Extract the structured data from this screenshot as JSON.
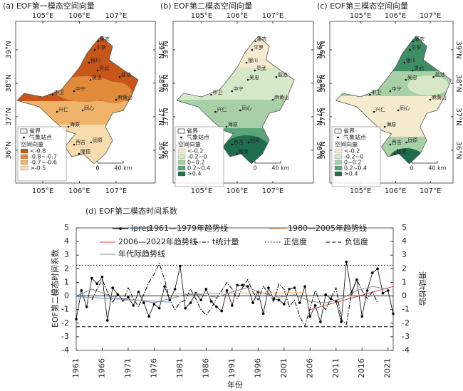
{
  "chart_data": [
    {
      "type": "map",
      "title": "(a) EOF第一模态空间向量",
      "xlim": [
        104.26,
        108.07
      ],
      "ylim": [
        35.02,
        39.85
      ],
      "xticks": [
        {
          "value": 105,
          "label": "105°E"
        },
        {
          "value": 106,
          "label": "106°E"
        },
        {
          "value": 107,
          "label": "107°E"
        }
      ],
      "yticks": [
        {
          "value": 36,
          "label": "36°N"
        },
        {
          "value": 37,
          "label": "37°N"
        },
        {
          "value": 38,
          "label": "38°N"
        },
        {
          "value": 39,
          "label": "39°N"
        }
      ],
      "legend_items": [
        "省界",
        "气象站点"
      ],
      "legend_title": "空间向量",
      "categories": [
        "<-0.8",
        "-0.8~-0.7",
        "-0.7~-0.6",
        ">-0.5"
      ],
      "colors": [
        "#c8561a",
        "#e08a3a",
        "#efb36a",
        "#f7dcae"
      ],
      "scale_labels": [
        "0",
        "40 km"
      ]
    },
    {
      "type": "map",
      "title": "(b) EOF第二模态空间向量",
      "xlim": [
        104.2,
        108.14
      ],
      "ylim": [
        35.02,
        39.85
      ],
      "xticks": [
        {
          "value": 105,
          "label": "105°E"
        },
        {
          "value": 106,
          "label": "106°E"
        },
        {
          "value": 107,
          "label": "107°E"
        }
      ],
      "yticks": [
        {
          "value": 36,
          "label": "36°N"
        },
        {
          "value": 37,
          "label": "37°N"
        },
        {
          "value": 38,
          "label": "38°N"
        },
        {
          "value": 39,
          "label": "39°N"
        }
      ],
      "legend_items": [
        "省界",
        "气象站点"
      ],
      "legend_title": "空间向量",
      "categories": [
        "<-0.2",
        "-0.2~0",
        "0~0.2",
        "0.2~0.4",
        ">0.4"
      ],
      "colors": [
        "#f5ebcf",
        "#d6e8c8",
        "#a8d0a6",
        "#5aa578",
        "#1e6e4e"
      ],
      "scale_labels": [
        "0",
        "40 km"
      ]
    },
    {
      "type": "map",
      "title": "(c) EOF第三模态空间向量",
      "xlim": [
        104.12,
        107.65
      ],
      "ylim": [
        35.02,
        39.85
      ],
      "xticks": [
        {
          "value": 105,
          "label": "105°E"
        },
        {
          "value": 106,
          "label": "106°E"
        },
        {
          "value": 107,
          "label": "107°E"
        }
      ],
      "yticks": [
        {
          "value": 36,
          "label": "36°N"
        },
        {
          "value": 37,
          "label": "37°N"
        },
        {
          "value": 38,
          "label": "38°N"
        },
        {
          "value": 39,
          "label": "39°N"
        }
      ],
      "legend_items": [
        "省界",
        "气象站点"
      ],
      "legend_title": "空间向量",
      "categories": [
        "<-0.2",
        "-0.2~0",
        "0~0.2",
        "0.2~0.4",
        ">0.4"
      ],
      "colors": [
        "#f5ebcf",
        "#d6e8c8",
        "#a8d0a6",
        "#5aa578",
        "#1e6e4e"
      ],
      "scale_labels": [
        "0",
        "40 km"
      ]
    },
    {
      "type": "line",
      "title": "(d) EOF第二模态时间系数",
      "x_label": "年份",
      "y_label": "EOF第二模态时间系数",
      "y2_label": "滑动t检验",
      "xlim": [
        1961,
        2022
      ],
      "ylim": [
        -4,
        5
      ],
      "y2lim": [
        -4,
        5
      ],
      "xticks": [
        1961,
        1966,
        1971,
        1976,
        1981,
        1986,
        1991,
        1996,
        2001,
        2006,
        2011,
        2016,
        2021
      ],
      "yticks": [
        -4,
        -3,
        -2,
        -1,
        0,
        1,
        2,
        3,
        4,
        5
      ],
      "y2ticks": [
        -4,
        -3,
        -2,
        -1,
        0,
        1,
        2,
        3,
        4,
        5
      ],
      "series": [
        {
          "name": "Iprep",
          "color": "#000000",
          "style": "solid",
          "marker": true,
          "x": [
            1961,
            1962,
            1963,
            1964,
            1965,
            1966,
            1967,
            1968,
            1969,
            1970,
            1971,
            1972,
            1973,
            1974,
            1975,
            1976,
            1977,
            1978,
            1979,
            1980,
            1981,
            1982,
            1983,
            1984,
            1985,
            1986,
            1987,
            1988,
            1989,
            1990,
            1991,
            1992,
            1993,
            1994,
            1995,
            1996,
            1997,
            1998,
            1999,
            2000,
            2001,
            2002,
            2003,
            2004,
            2005,
            2006,
            2007,
            2008,
            2009,
            2010,
            2011,
            2012,
            2013,
            2014,
            2015,
            2016,
            2017,
            2018,
            2019,
            2020,
            2021,
            2022
          ],
          "values": [
            -1.7,
            0.4,
            -0.8,
            1.3,
            0.9,
            1.4,
            -1.8,
            0.6,
            0.1,
            -0.3,
            -0.1,
            -0.7,
            0.3,
            -0.5,
            -1.5,
            -0.6,
            -0.9,
            0.7,
            -0.3,
            0.5,
            2.2,
            -0.9,
            -0.5,
            0.2,
            -0.3,
            0.5,
            -0.4,
            -0.8,
            -1.1,
            0.4,
            -0.7,
            0.8,
            0.8,
            0.7,
            -0.5,
            0.3,
            -1.3,
            0.6,
            -0.2,
            -0.3,
            -0.6,
            0.5,
            0.6,
            -0.5,
            0.7,
            -1.5,
            -0.7,
            -1.9,
            0.1,
            -0.2,
            -0.4,
            -1.9,
            2.5,
            0.2,
            1.2,
            -1.5,
            0.4,
            1.7,
            2.0,
            0.2,
            0.4,
            -1.3
          ]
        },
        {
          "name": "1961—1979年趋势线",
          "color": "#5b9bd5",
          "style": "solid",
          "x": [
            1961,
            1979
          ],
          "values": [
            -0.05,
            -0.45
          ]
        },
        {
          "name": "1980—2005年趋势线",
          "color": "#f4a460",
          "style": "solid",
          "x": [
            1980,
            2005
          ],
          "values": [
            0.15,
            0.25
          ]
        },
        {
          "name": "2006—2022年趋势线",
          "color": "#e0403a",
          "style": "solid",
          "x": [
            2006,
            2022
          ],
          "values": [
            -1.0,
            0.7
          ]
        },
        {
          "name": "t统计量",
          "color": "#000000",
          "style": "dashdot",
          "axis": "y2",
          "x": [
            1964,
            1965,
            1966,
            1967,
            1968,
            1969,
            1970,
            1971,
            1972,
            1973,
            1974,
            1975,
            1976,
            1977,
            1978,
            1979,
            1980,
            1981,
            1982,
            1983,
            1984,
            1985,
            1986,
            1987,
            1988,
            1989,
            1990,
            1991,
            1992,
            1993,
            1994,
            1995,
            1996,
            1997,
            1998,
            1999,
            2000,
            2001,
            2002,
            2003,
            2004,
            2005,
            2006,
            2007,
            2008,
            2009,
            2010,
            2011,
            2012,
            2013,
            2014,
            2015,
            2016,
            2017,
            2018,
            2019
          ],
          "values": [
            -0.3,
            0.5,
            1.2,
            0.3,
            -0.5,
            0.2,
            -0.4,
            0.6,
            -0.2,
            -0.8,
            0.1,
            1.0,
            1.6,
            2.4,
            1.2,
            -0.3,
            -1.0,
            -0.5,
            -0.3,
            0.5,
            -0.2,
            -1.0,
            -1.4,
            -0.9,
            -0.2,
            0.4,
            1.0,
            0.5,
            -0.2,
            0.6,
            1.2,
            0.3,
            -0.3,
            0.7,
            0.2,
            -0.4,
            0.9,
            0.5,
            -0.8,
            -0.3,
            -1.5,
            -2.2,
            -0.9,
            0.4,
            -0.6,
            -1.0,
            -0.2,
            0.6,
            -1.7,
            -2.1,
            0.3,
            1.2,
            0.4,
            -0.2,
            0.3,
            -0.5
          ]
        },
        {
          "name": "正信度",
          "color": "#000000",
          "style": "dotted",
          "axis": "y2",
          "x": [
            1961,
            2022
          ],
          "values": [
            2.26,
            2.26
          ]
        },
        {
          "name": "负信度",
          "color": "#000000",
          "style": "dashed",
          "axis": "y2",
          "x": [
            1961,
            2022
          ],
          "values": [
            -2.26,
            -2.26
          ]
        },
        {
          "name": "年代际趋势线",
          "color": "#8c8c8c",
          "style": "solid",
          "x": [
            1961,
            1964,
            1967,
            1970,
            1973,
            1976,
            1979,
            1982,
            1985,
            1988,
            1991,
            1994,
            1997,
            2000,
            2003,
            2006,
            2009,
            2012,
            2015,
            2018,
            2021
          ],
          "values": [
            0.0,
            0.5,
            0.1,
            -0.3,
            -0.3,
            -0.5,
            -0.2,
            0.1,
            0.1,
            -0.1,
            0.3,
            0.6,
            0.2,
            -0.1,
            0.1,
            -0.4,
            -0.5,
            -0.2,
            0.4,
            0.7,
            0.5
          ]
        }
      ]
    }
  ],
  "stations": [
    "惠农",
    "平罗",
    "银川",
    "灵武",
    "吴忠",
    "盐池",
    "中宁",
    "中卫",
    "麻黄山",
    "兴仁",
    "同心",
    "海原",
    "西吉",
    "固原",
    "隆德"
  ]
}
